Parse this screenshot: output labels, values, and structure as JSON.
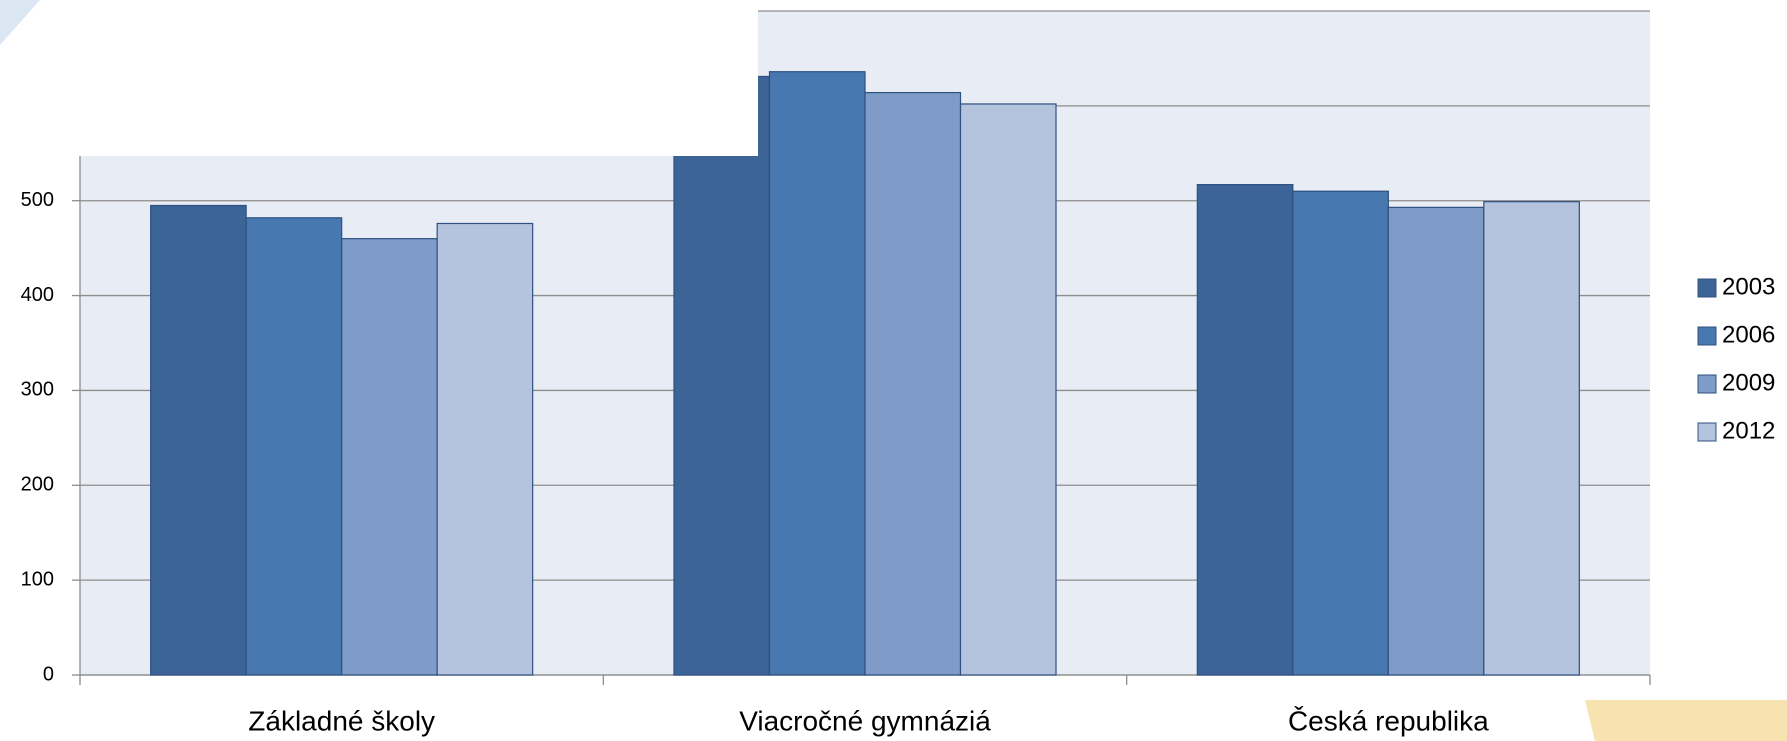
{
  "chart_data": {
    "type": "bar",
    "categories": [
      "Základné školy",
      "Viacročné gymnáziá",
      "Česká republika"
    ],
    "series": [
      {
        "name": "2003",
        "color": "#3c6496",
        "values": [
          495,
          631,
          517
        ]
      },
      {
        "name": "2006",
        "color": "#4878b0",
        "values": [
          482,
          636,
          510
        ]
      },
      {
        "name": "2009",
        "color": "#7f9cc9",
        "values": [
          460,
          614,
          493
        ]
      },
      {
        "name": "2012",
        "color": "#b4c3de",
        "values": [
          476,
          602,
          499
        ]
      }
    ],
    "ylim": [
      0,
      700
    ],
    "yticks": [
      0,
      100,
      200,
      300,
      400,
      500,
      {
        "value": 600,
        "label": null
      },
      {
        "value": 700,
        "label": null
      }
    ],
    "grid": true,
    "legend": "right"
  }
}
